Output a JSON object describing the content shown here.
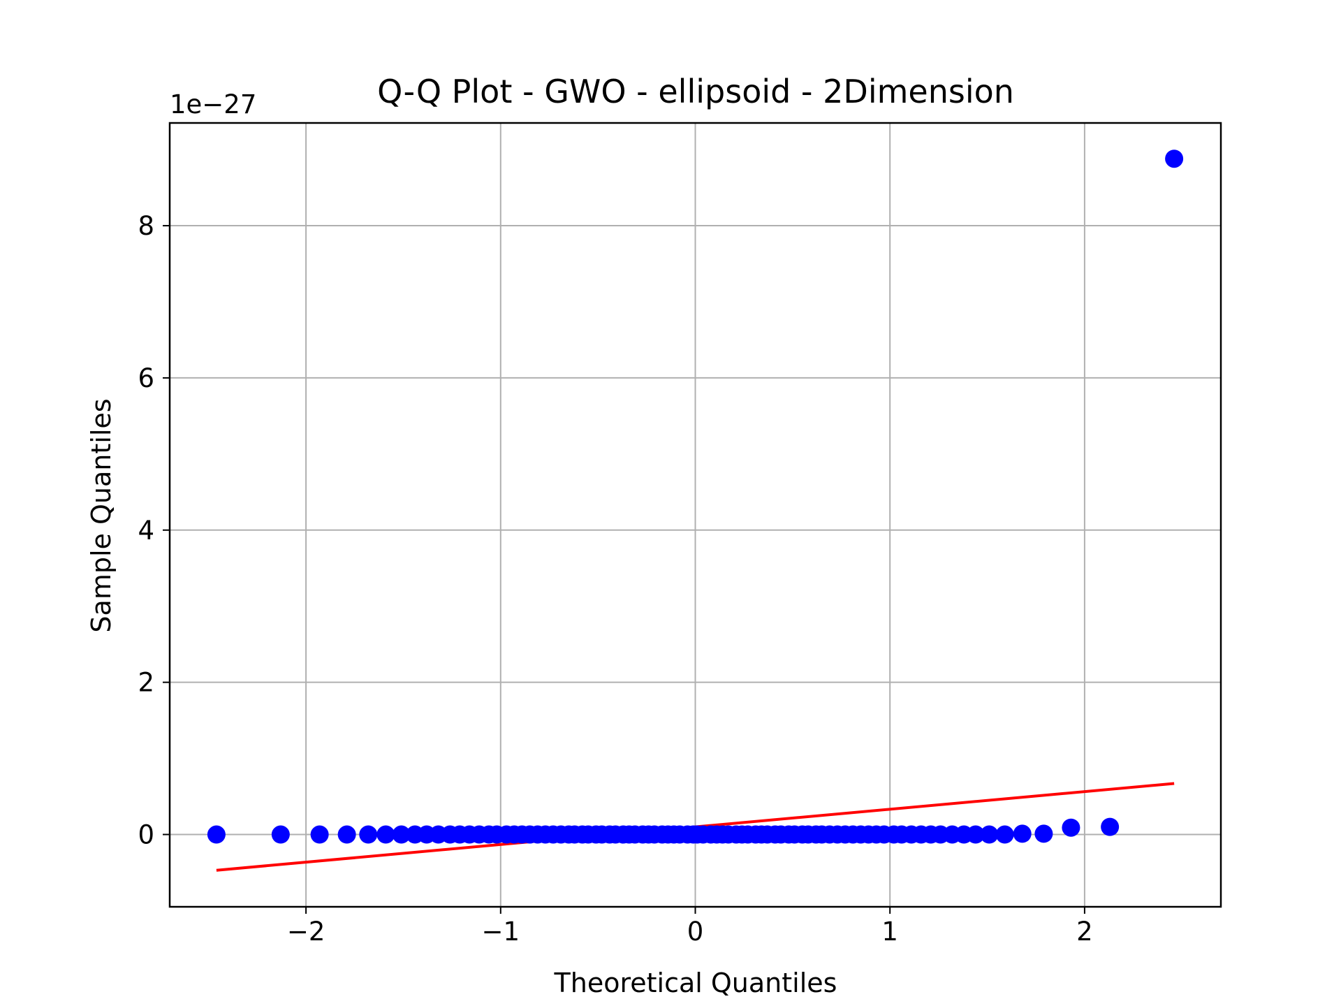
{
  "chart_data": {
    "type": "scatter",
    "title": "Q-Q Plot - GWO - ellipsoid - 2Dimension",
    "xlabel": "Theoretical Quantiles",
    "ylabel": "Sample Quantiles",
    "y_offset_label": "1e−27",
    "xlim": [
      -2.7,
      2.7
    ],
    "ylim": [
      -0.95,
      9.35
    ],
    "grid": true,
    "x_ticks": [
      {
        "value": -2,
        "label": "−2"
      },
      {
        "value": -1,
        "label": "−1"
      },
      {
        "value": 0,
        "label": "0"
      },
      {
        "value": 1,
        "label": "1"
      },
      {
        "value": 2,
        "label": "2"
      }
    ],
    "y_ticks": [
      {
        "value": 0,
        "label": "0"
      },
      {
        "value": 2,
        "label": "2"
      },
      {
        "value": 4,
        "label": "4"
      },
      {
        "value": 6,
        "label": "6"
      },
      {
        "value": 8,
        "label": "8"
      }
    ],
    "series": [
      {
        "kind": "points",
        "color": "#0000ff",
        "x": [
          -2.46,
          -2.13,
          -1.93,
          -1.79,
          -1.68,
          -1.59,
          -1.51,
          -1.44,
          -1.38,
          -1.32,
          -1.26,
          -1.21,
          -1.16,
          -1.11,
          -1.06,
          -1.02,
          -0.97,
          -0.93,
          -0.89,
          -0.85,
          -0.81,
          -0.77,
          -0.73,
          -0.69,
          -0.65,
          -0.62,
          -0.58,
          -0.55,
          -0.51,
          -0.48,
          -0.44,
          -0.41,
          -0.37,
          -0.34,
          -0.31,
          -0.27,
          -0.24,
          -0.21,
          -0.17,
          -0.14,
          -0.11,
          -0.08,
          -0.04,
          -0.01,
          0.01,
          0.04,
          0.08,
          0.11,
          0.14,
          0.17,
          0.21,
          0.24,
          0.27,
          0.31,
          0.34,
          0.37,
          0.41,
          0.44,
          0.48,
          0.51,
          0.55,
          0.58,
          0.62,
          0.65,
          0.69,
          0.73,
          0.77,
          0.81,
          0.85,
          0.89,
          0.93,
          0.97,
          1.02,
          1.06,
          1.11,
          1.16,
          1.21,
          1.26,
          1.32,
          1.38,
          1.44,
          1.51,
          1.59,
          1.68,
          1.79,
          1.93,
          2.13,
          2.46
        ],
        "y": [
          0.0,
          0.0,
          0.0,
          0.0,
          0.0,
          0.0,
          0.0,
          0.0,
          0.0,
          0.0,
          0.0,
          0.0,
          0.0,
          0.0,
          0.0,
          0.0,
          0.0,
          0.0,
          0.0,
          0.0,
          0.0,
          0.0,
          0.0,
          0.0,
          0.0,
          0.0,
          0.0,
          0.0,
          0.0,
          0.0,
          0.0,
          0.0,
          0.0,
          0.0,
          0.0,
          0.0,
          0.0,
          0.0,
          0.0,
          0.0,
          0.0,
          0.0,
          0.0,
          0.0,
          0.0,
          0.0,
          0.0,
          0.0,
          0.0,
          0.0,
          0.0,
          0.0,
          0.0,
          0.0,
          0.0,
          0.0,
          0.0,
          0.0,
          0.0,
          0.0,
          0.0,
          0.0,
          0.0,
          0.0,
          0.0,
          0.0,
          0.0,
          0.0,
          0.0,
          0.0,
          0.0,
          0.0,
          0.0,
          0.0,
          0.0,
          0.0,
          0.0,
          0.0,
          0.0,
          0.0,
          0.0,
          0.0,
          0.0,
          0.01,
          0.01,
          0.09,
          0.1,
          8.88
        ]
      },
      {
        "kind": "reference-line",
        "color": "#ff0000",
        "x": [
          -2.46,
          2.46
        ],
        "y": [
          -0.47,
          0.67
        ]
      }
    ]
  }
}
